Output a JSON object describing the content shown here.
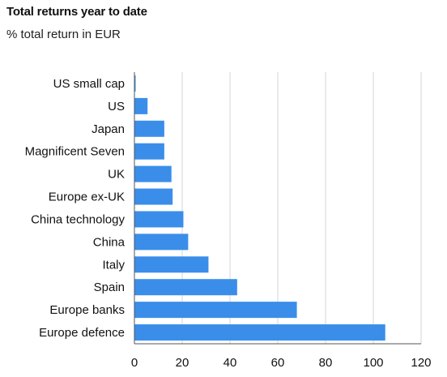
{
  "chart_data": {
    "type": "bar",
    "orientation": "horizontal",
    "title": "Total returns year to date",
    "subtitle": "% total return in EUR",
    "categories": [
      "US small cap",
      "US",
      "Japan",
      "Magnificent Seven",
      "UK",
      "Europe ex-UK",
      "China technology",
      "China",
      "Italy",
      "Spain",
      "Europe banks",
      "Europe defence"
    ],
    "values": [
      0.5,
      5.5,
      12.5,
      12.5,
      15.5,
      16,
      20.5,
      22.5,
      31,
      43,
      68,
      105
    ],
    "xlim": [
      0,
      120
    ],
    "xticks": [
      0,
      20,
      40,
      60,
      80,
      100,
      120
    ],
    "grid": "vertical",
    "bar_color": "#3a8ee9",
    "grid_color": "#d6d6d6",
    "axis_color": "#555555"
  }
}
